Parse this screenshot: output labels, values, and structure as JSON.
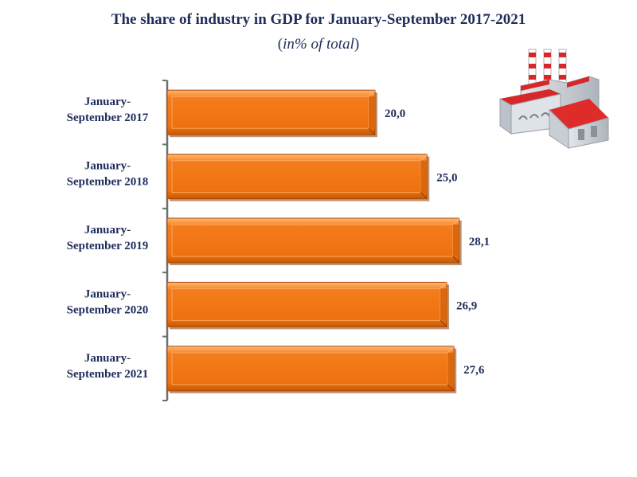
{
  "chart_data": {
    "type": "bar",
    "orientation": "horizontal",
    "title": "The share of industry in GDP for January-September 2017-2021",
    "subtitle": {
      "open": "(",
      "italic": "in% of total",
      "close": ")"
    },
    "categories": [
      [
        "January-",
        "September 2017"
      ],
      [
        "January-",
        "September 2018"
      ],
      [
        "January-",
        "September 2019"
      ],
      [
        "January-",
        "September 2020"
      ],
      [
        "January-",
        "September 2021"
      ]
    ],
    "values": [
      20.0,
      25.0,
      28.1,
      26.9,
      27.6
    ],
    "value_labels": [
      "20,0",
      "25,0",
      "28,1",
      "26,9",
      "27,6"
    ],
    "xlim": [
      0,
      30
    ],
    "grid": false,
    "legend": "none",
    "bar_color": "#f47c1c",
    "bar_edge_color": "#8a3a00",
    "label_color": "#1f2d5a",
    "decoration_icon": "factory-icon"
  }
}
